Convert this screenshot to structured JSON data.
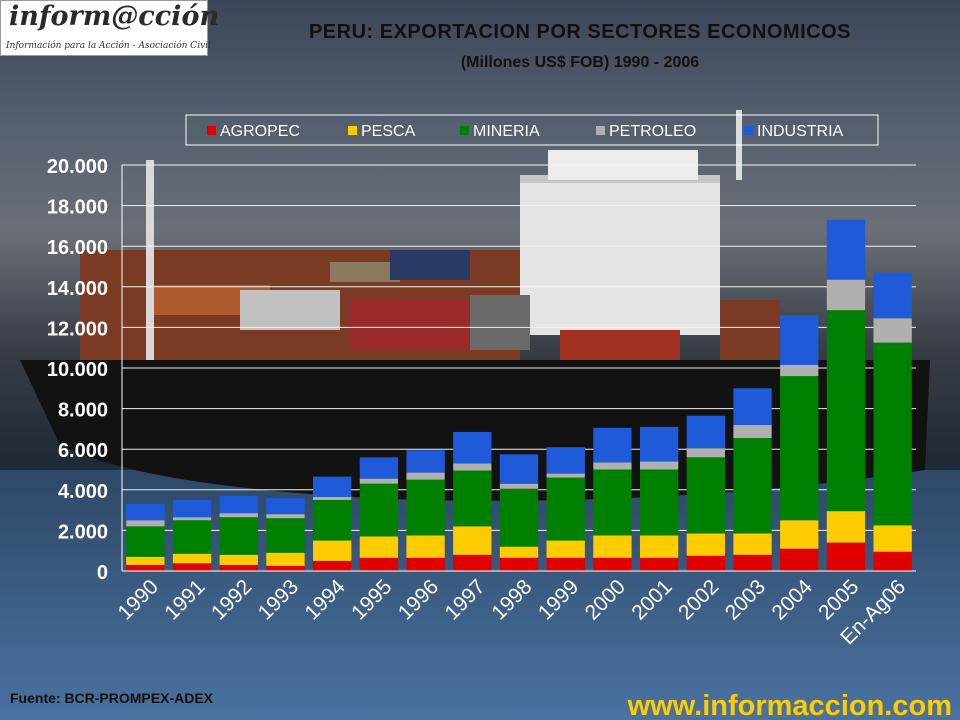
{
  "logo": {
    "main": "inform@cción",
    "tagline": "Información para la Acción - Asociación Civil"
  },
  "footer": {
    "source": "Fuente: BCR-PROMPEX-ADEX",
    "website": "www.informaccion.com"
  },
  "chart_data": {
    "type": "bar",
    "stacked": true,
    "title": "PERU: EXPORTACION POR SECTORES ECONOMICOS",
    "subtitle": "(Millones US$ FOB) 1990 - 2006",
    "categories": [
      "1990",
      "1991",
      "1992",
      "1993",
      "1994",
      "1995",
      "1996",
      "1997",
      "1998",
      "1999",
      "2000",
      "2001",
      "2002",
      "2003",
      "2004",
      "2005",
      "En-Ag06"
    ],
    "series": [
      {
        "name": "AGROPEC",
        "color": "#e00000",
        "values": [
          300,
          380,
          300,
          250,
          500,
          650,
          650,
          800,
          650,
          650,
          650,
          650,
          750,
          800,
          1100,
          1400,
          950
        ]
      },
      {
        "name": "PESCA",
        "color": "#ffcc00",
        "values": [
          400,
          470,
          500,
          650,
          1000,
          1050,
          1100,
          1400,
          550,
          850,
          1100,
          1100,
          1100,
          1050,
          1400,
          1550,
          1300
        ]
      },
      {
        "name": "MINERIA",
        "color": "#008000",
        "values": [
          1500,
          1650,
          1850,
          1700,
          2000,
          2600,
          2750,
          2750,
          2850,
          3100,
          3250,
          3250,
          3750,
          4700,
          7100,
          9900,
          9000
        ]
      },
      {
        "name": "PETROLEO",
        "color": "#b0b0b0",
        "values": [
          300,
          150,
          200,
          200,
          150,
          250,
          350,
          350,
          250,
          200,
          350,
          400,
          450,
          650,
          550,
          1500,
          1200
        ]
      },
      {
        "name": "INDUSTRIA",
        "color": "#1f5ad8",
        "values": [
          800,
          850,
          850,
          800,
          1000,
          1050,
          1100,
          1550,
          1450,
          1300,
          1700,
          1700,
          1600,
          1800,
          2450,
          2950,
          2250
        ]
      }
    ],
    "ylim": [
      0,
      20000
    ],
    "yticks": [
      0,
      2000,
      4000,
      6000,
      8000,
      10000,
      12000,
      14000,
      16000,
      18000,
      20000
    ],
    "ytick_labels": [
      "0",
      "2.000",
      "4.000",
      "6.000",
      "8.000",
      "10.000",
      "12.000",
      "14.000",
      "16.000",
      "18.000",
      "20.000"
    ],
    "grid": true,
    "legend_position": "top"
  }
}
